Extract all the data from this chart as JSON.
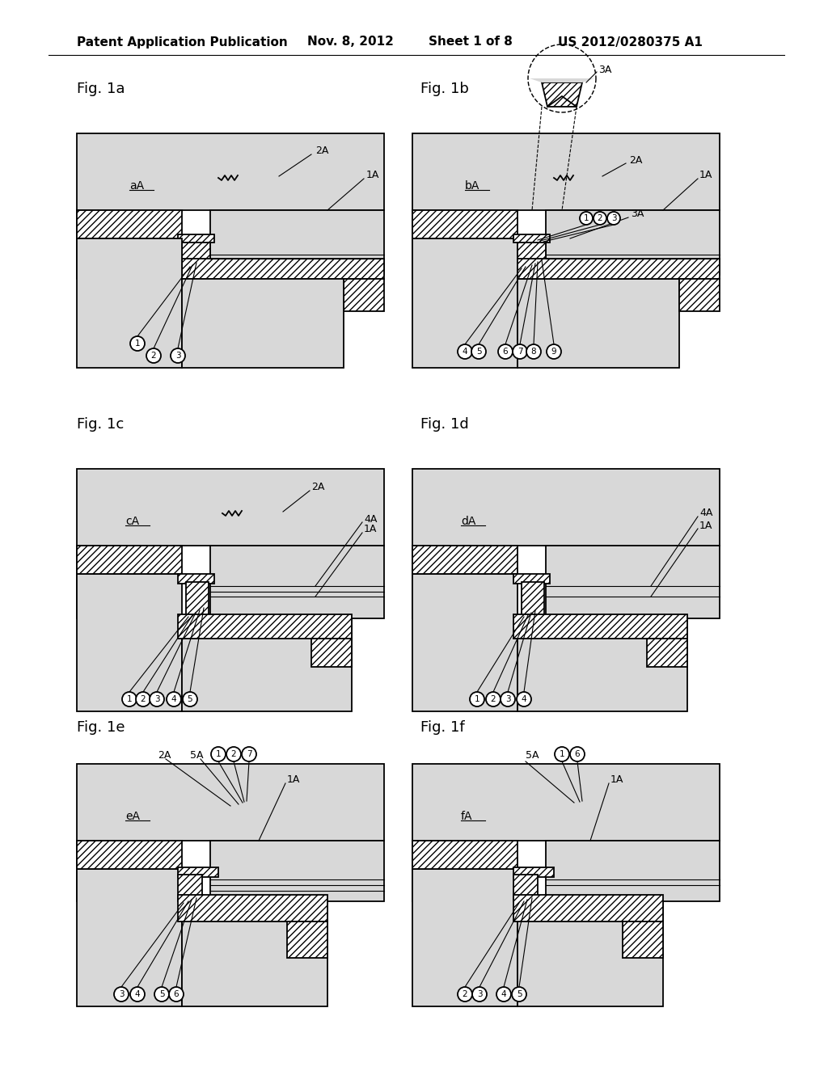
{
  "bg": "#ffffff",
  "lc": "#000000",
  "dot_fc": "#d8d8d8",
  "hatch_fc": "#ffffff",
  "hatch_pat": "////",
  "header": {
    "pub": "Patent Application Publication",
    "date": "Nov. 8, 2012",
    "sheet": "Sheet 1 of 8",
    "pat": "US 2012/0280375 A1"
  },
  "fig_titles": [
    "Fig. 1a",
    "Fig. 1b",
    "Fig. 1c",
    "Fig. 1d",
    "Fig. 1e",
    "Fig. 1f"
  ],
  "lw": 1.3
}
